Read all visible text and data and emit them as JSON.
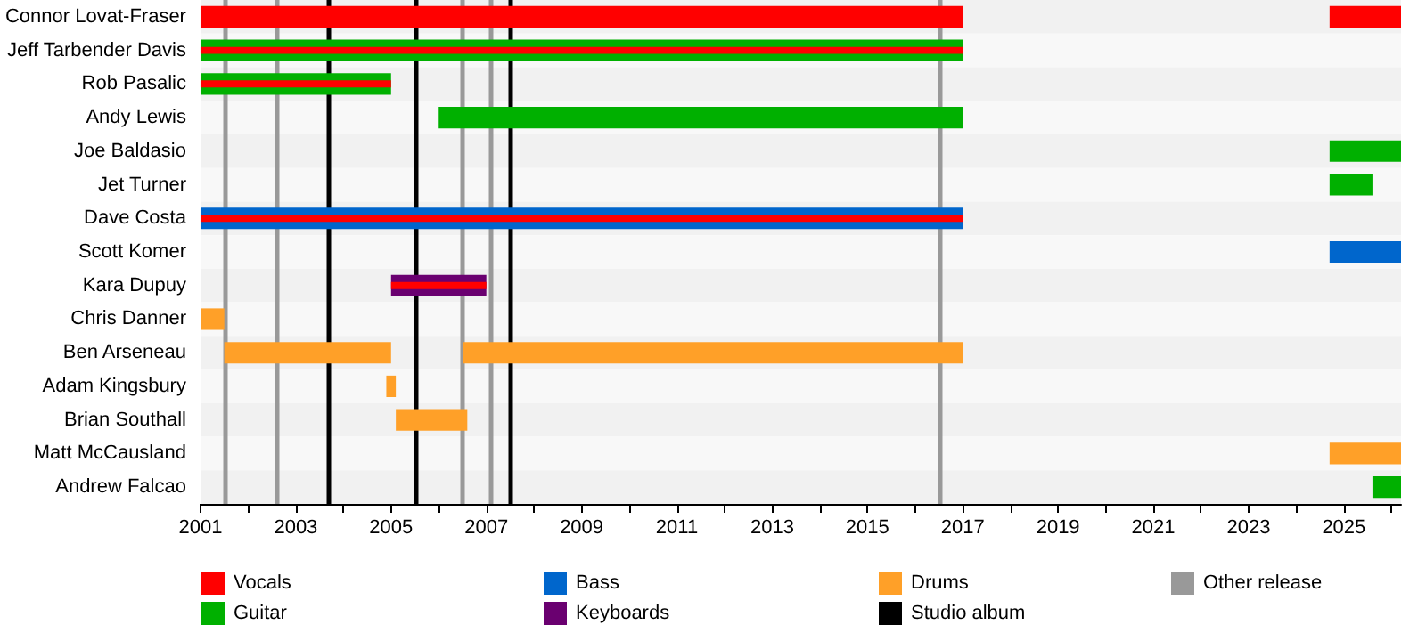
{
  "chart_data": {
    "type": "bar",
    "orientation": "horizontal",
    "categories": [
      "Connor Lovat-Fraser",
      "Jeff Tarbender Davis",
      "Rob Pasalic",
      "Andy Lewis",
      "Joe Baldasio",
      "Jet Turner",
      "Dave Costa",
      "Scott Komer",
      "Kara Dupuy",
      "Chris Danner",
      "Ben Arseneau",
      "Adam Kingsbury",
      "Brian Southall",
      "Matt McCausland",
      "Andrew Falcao"
    ],
    "series": [
      {
        "name": "Vocals",
        "color": "#ff0000",
        "base": [
          2001,
          null,
          null,
          null,
          null,
          null,
          null,
          null,
          null,
          null,
          null,
          null,
          null,
          null,
          null
        ],
        "values": [
          16,
          null,
          null,
          null,
          null,
          null,
          null,
          null,
          null,
          null,
          null,
          null,
          null,
          null,
          null
        ]
      },
      {
        "name": "Guitar",
        "color": "#00b000",
        "base": [
          null,
          2001,
          2001,
          2006,
          2024.7,
          2024.7,
          null,
          null,
          null,
          null,
          null,
          null,
          null,
          null,
          2025.6
        ],
        "values": [
          null,
          16,
          4,
          11,
          1.5,
          0.9,
          null,
          null,
          null,
          null,
          null,
          null,
          null,
          null,
          0.6
        ]
      },
      {
        "name": "Bass",
        "color": "#0066cc",
        "base": [
          null,
          null,
          null,
          null,
          null,
          null,
          2001,
          2024.7,
          null,
          null,
          null,
          null,
          null,
          null,
          null
        ],
        "values": [
          null,
          null,
          null,
          null,
          null,
          null,
          16,
          1.5,
          null,
          null,
          null,
          null,
          null,
          null,
          null
        ]
      },
      {
        "name": "Keyboards",
        "color": "#6a0070",
        "base": [
          null,
          null,
          null,
          null,
          null,
          null,
          null,
          null,
          2005,
          null,
          null,
          null,
          null,
          null,
          null
        ],
        "values": [
          null,
          null,
          null,
          null,
          null,
          null,
          null,
          null,
          2,
          null,
          null,
          null,
          null,
          null,
          null
        ]
      },
      {
        "name": "Drums",
        "color": "#ffa028",
        "base": [
          null,
          null,
          null,
          null,
          null,
          null,
          null,
          null,
          null,
          2001,
          2001.5,
          2004.9,
          2005.1,
          2024.7,
          null
        ],
        "values": [
          null,
          null,
          null,
          null,
          null,
          null,
          null,
          null,
          null,
          0.5,
          3.5,
          0.2,
          1.5,
          1.5,
          null
        ]
      },
      {
        "color": "#ff0000",
        "base": [
          null,
          2001,
          2001,
          null,
          null,
          null,
          2001,
          null,
          2005,
          null,
          null,
          null,
          null,
          null,
          null
        ],
        "values": [
          null,
          16,
          4,
          null,
          null,
          null,
          16,
          null,
          2,
          null,
          null,
          null,
          null,
          null,
          null
        ]
      },
      {
        "color": "#ff0000",
        "base": [
          2024.7,
          null,
          null,
          null,
          null,
          null,
          null,
          null,
          null,
          null,
          null,
          null,
          null,
          null,
          null
        ],
        "values": [
          1.5,
          null,
          null,
          null,
          null,
          null,
          null,
          null,
          null,
          null,
          null,
          null,
          null,
          null,
          null
        ]
      },
      {
        "color": "#ffa028",
        "base": [
          null,
          null,
          null,
          null,
          null,
          null,
          null,
          null,
          null,
          null,
          2006.5,
          null,
          null,
          null,
          null
        ],
        "values": [
          null,
          null,
          null,
          null,
          null,
          null,
          null,
          null,
          null,
          null,
          10.5,
          null,
          null,
          null,
          null
        ]
      }
    ],
    "xlim": [
      2001,
      2026.2
    ],
    "xticks": [
      2001,
      {
        "value": 2002,
        "label": null
      },
      2003,
      {
        "value": 2004,
        "label": null
      },
      2005,
      {
        "value": 2006,
        "label": null
      },
      2007,
      {
        "value": 2008,
        "label": null
      },
      2009,
      {
        "value": 2010,
        "label": null
      },
      2011,
      {
        "value": 2012,
        "label": null
      },
      2013,
      {
        "value": 2014,
        "label": null
      },
      2015,
      {
        "value": 2016,
        "label": null
      },
      2017,
      {
        "value": 2018,
        "label": null
      },
      2019,
      {
        "value": 2020,
        "label": null
      },
      2021,
      {
        "value": 2022,
        "label": null
      },
      2023,
      {
        "value": 2024,
        "label": null
      },
      2025,
      {
        "value": 2026,
        "label": null
      }
    ],
    "ref_lines": [
      {
        "axis": "x",
        "value": 2003.7,
        "label": "Studio album",
        "color": "#000000"
      },
      {
        "axis": "x",
        "value": 2005.5,
        "color": "#000000"
      },
      {
        "axis": "x",
        "value": 2007.5,
        "color": "#000000"
      },
      {
        "axis": "x",
        "value": 2001.5,
        "label": "Other release",
        "color": "#999999"
      },
      {
        "axis": "x",
        "value": 2002.6,
        "color": "#999999"
      },
      {
        "axis": "x",
        "value": 2006.5,
        "color": "#999999"
      },
      {
        "axis": "x",
        "value": 2007.1,
        "color": "#999999"
      },
      {
        "axis": "x",
        "value": 2016.5,
        "color": "#999999"
      }
    ],
    "legend": "bottom",
    "grid": false
  }
}
